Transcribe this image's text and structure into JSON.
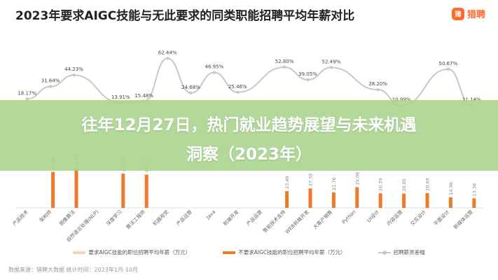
{
  "title": "2023年要求AIGC技能与无此要求的同类职能招聘平均年薪对比",
  "logo": {
    "mark": "猎",
    "text": "猎聘",
    "icon": "liepin-logo-icon",
    "color": "#ff6a2e"
  },
  "banner": {
    "line1": "往年12月27日，热门就业趋势展望与未来机遇",
    "line2": "洞察（2023年）",
    "color": "#a8d48c"
  },
  "source": "数据来源：猎聘大数据    统计时间：2023年1月-10月",
  "chart_data": {
    "type": "bar",
    "categories": [
      "产品技术",
      "架构师",
      "图像算法",
      "自然语言处理(NLP)",
      "深度学习",
      "算法工程师",
      "机器视觉",
      "产品运营",
      "Java",
      "前端开发",
      "产品运营",
      "售前技术支持",
      "WEB前端开发",
      "大客户销售",
      "Python",
      "UI设计",
      "内容运营",
      "交互设计",
      "平面设计",
      "新媒体运营"
    ],
    "series": [
      {
        "name": "要求AIGC技能的职位招聘平均年薪（万元）",
        "color": "#f5d5bf",
        "values": [
          null,
          null,
          null,
          null,
          null,
          null,
          null,
          null,
          null,
          null,
          null,
          null,
          null,
          null,
          null,
          null,
          null,
          null,
          null,
          null
        ]
      },
      {
        "name": "不要求AIGC技能的职位招聘平均年薪（万元）",
        "color": "#f07a2b",
        "values": [
          null,
          50.4,
          54.62,
          null,
          47.91,
          46.73,
          null,
          null,
          null,
          null,
          null,
          23.48,
          27.3,
          21.76,
          29.06,
          20.39,
          20.05,
          20.69,
          14.96,
          13.38
        ]
      },
      {
        "name": "招聘薪资差幅",
        "color": "#c8c8c8",
        "values": [
          18.17,
          31.64,
          44.23,
          null,
          13.91,
          15.48,
          62.44,
          24.68,
          46.95,
          25.46,
          null,
          52.8,
          39.05,
          52.49,
          null,
          28.2,
          10.99,
          null,
          50.67,
          11.14
        ],
        "unit": "%"
      }
    ],
    "data_labels_shown": {
      "bars": [
        "50.40",
        "54.62",
        "47.91",
        "46.73",
        "23.48",
        "27.30",
        "21.76",
        "29.06",
        "20.39",
        "20.05",
        "20.69",
        "14.96",
        "13.38"
      ],
      "line": [
        "18.17%",
        "31.64%",
        "44.23%",
        "13.91%",
        "15.48%",
        "62.44%",
        "24.68%",
        "46.95%",
        "25.46%",
        "52.80%",
        "39.05%",
        "52.49%",
        "28.20%",
        "10.99%",
        "50.67%",
        "11.14%"
      ]
    },
    "legend_position": "bottom",
    "grid": false
  }
}
